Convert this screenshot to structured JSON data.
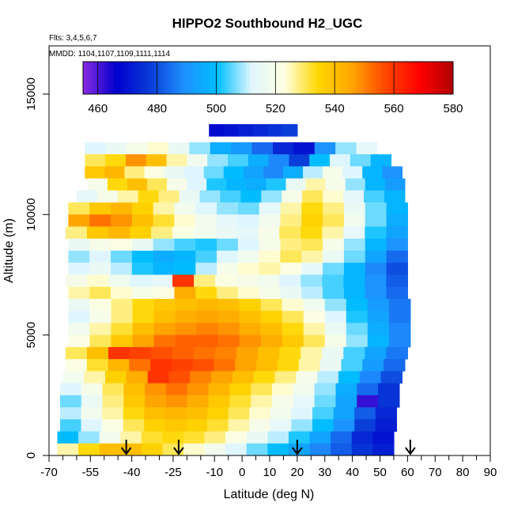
{
  "chart_data": {
    "type": "heatmap",
    "title": "HIPPO2 Southbound H2_UGC",
    "subtitle_flights": "Flts: 3,4,5,6,7",
    "subtitle_dates": "MMDD: 1104,1107,1109,1111,1114",
    "xlabel": "Latitude (deg N)",
    "ylabel": "Altitude (m)",
    "xlim": [
      -70,
      90
    ],
    "ylim": [
      0,
      17000
    ],
    "x_ticks": [
      -70,
      -55,
      -40,
      -25,
      -10,
      0,
      10,
      20,
      30,
      40,
      50,
      60,
      70,
      80,
      90
    ],
    "x_minor_ticks": [
      -65,
      -60,
      -50,
      -45,
      -35,
      -30,
      -20,
      -15,
      -5,
      5,
      15,
      25,
      35,
      45,
      55,
      65,
      75,
      85
    ],
    "y_ticks": [
      0,
      5000,
      10000,
      15000
    ],
    "colorbar": {
      "range": [
        455,
        580
      ],
      "ticks": [
        460,
        480,
        500,
        520,
        540,
        560,
        580
      ],
      "stops": [
        "#8a2be2",
        "#0000cd",
        "#0a3cd8",
        "#1e90ff",
        "#00bfff",
        "#e0f6ff",
        "#ffffe0",
        "#ffd700",
        "#ffa500",
        "#ff4500",
        "#ff0000",
        "#b00000"
      ]
    },
    "profile_markers_lat": [
      -42,
      -23,
      20,
      61
    ],
    "bands": [
      {
        "alt": 13500,
        "lat": [
          -12,
          20
        ],
        "values": [
          468,
          470,
          472,
          474,
          476,
          478
        ]
      },
      {
        "alt": 12750,
        "lat": [
          -57,
          49
        ],
        "values": [
          512,
          516,
          520,
          524,
          516,
          508,
          496,
          492,
          484,
          474,
          470,
          490,
          508,
          514
        ]
      },
      {
        "alt": 12250,
        "lat": [
          -57,
          54
        ],
        "values": [
          530,
          534,
          548,
          540,
          526,
          518,
          508,
          504,
          496,
          488,
          478,
          500,
          512,
          506,
          498
        ]
      },
      {
        "alt": 11750,
        "lat": [
          -57,
          58
        ],
        "values": [
          538,
          542,
          528,
          522,
          516,
          512,
          506,
          500,
          494,
          488,
          496,
          510,
          520,
          512,
          498,
          490
        ]
      },
      {
        "alt": 11250,
        "lat": [
          -56,
          59
        ],
        "values": [
          520,
          534,
          540,
          530,
          520,
          512,
          502,
          498,
          496,
          502,
          516,
          526,
          520,
          508,
          498,
          492
        ]
      },
      {
        "alt": 10750,
        "lat": [
          -60,
          59
        ],
        "values": [
          514,
          520,
          526,
          534,
          528,
          516,
          508,
          504,
          500,
          508,
          520,
          530,
          524,
          514,
          504,
          498
        ]
      },
      {
        "alt": 10250,
        "lat": [
          -63,
          60
        ],
        "values": [
          530,
          538,
          542,
          536,
          526,
          518,
          512,
          508,
          506,
          514,
          526,
          534,
          528,
          516,
          506,
          498
        ]
      },
      {
        "alt": 9750,
        "lat": [
          -63,
          60
        ],
        "values": [
          546,
          552,
          548,
          540,
          532,
          524,
          518,
          514,
          512,
          518,
          528,
          536,
          530,
          518,
          506,
          496
        ]
      },
      {
        "alt": 9250,
        "lat": [
          -64,
          60
        ],
        "values": [
          528,
          538,
          542,
          536,
          528,
          522,
          518,
          516,
          514,
          520,
          530,
          534,
          526,
          514,
          502,
          494
        ]
      },
      {
        "alt": 8750,
        "lat": [
          -63,
          60
        ],
        "values": [
          516,
          520,
          522,
          516,
          508,
          504,
          502,
          506,
          512,
          520,
          528,
          530,
          520,
          508,
          498,
          490
        ]
      },
      {
        "alt": 8250,
        "lat": [
          -63,
          60
        ],
        "values": [
          508,
          512,
          506,
          500,
          496,
          498,
          504,
          512,
          518,
          524,
          530,
          526,
          516,
          506,
          494,
          484
        ]
      },
      {
        "alt": 7750,
        "lat": [
          -63,
          60
        ],
        "values": [
          512,
          516,
          510,
          502,
          498,
          500,
          510,
          520,
          524,
          526,
          522,
          514,
          506,
          498,
          488,
          480
        ]
      },
      {
        "alt": 7250,
        "lat": [
          -64,
          60
        ],
        "values": [
          520,
          524,
          518,
          512,
          514,
          560,
          528,
          522,
          520,
          518,
          512,
          508,
          504,
          498,
          490,
          482
        ]
      },
      {
        "alt": 6750,
        "lat": [
          -63,
          60
        ],
        "values": [
          526,
          530,
          524,
          520,
          522,
          544,
          534,
          528,
          524,
          520,
          516,
          510,
          504,
          498,
          490,
          484
        ]
      },
      {
        "alt": 6250,
        "lat": [
          -63,
          61
        ],
        "values": [
          516,
          522,
          528,
          534,
          538,
          540,
          542,
          540,
          536,
          530,
          524,
          518,
          508,
          500,
          492,
          486
        ]
      },
      {
        "alt": 5750,
        "lat": [
          -63,
          61
        ],
        "values": [
          512,
          520,
          528,
          534,
          540,
          544,
          546,
          544,
          540,
          536,
          530,
          522,
          512,
          502,
          494,
          486
        ]
      },
      {
        "alt": 5250,
        "lat": [
          -63,
          61
        ],
        "values": [
          518,
          526,
          532,
          540,
          546,
          548,
          550,
          548,
          544,
          540,
          534,
          526,
          516,
          506,
          496,
          488
        ]
      },
      {
        "alt": 4750,
        "lat": [
          -63,
          61
        ],
        "values": [
          522,
          530,
          538,
          546,
          552,
          554,
          554,
          552,
          548,
          544,
          538,
          530,
          520,
          508,
          498,
          488
        ]
      },
      {
        "alt": 4250,
        "lat": [
          -64,
          60
        ],
        "values": [
          530,
          540,
          560,
          558,
          556,
          554,
          552,
          550,
          546,
          540,
          534,
          526,
          516,
          504,
          494,
          486
        ]
      },
      {
        "alt": 3750,
        "lat": [
          -64,
          59
        ],
        "values": [
          522,
          532,
          542,
          552,
          560,
          558,
          556,
          552,
          546,
          540,
          534,
          526,
          516,
          504,
          492,
          484
        ]
      },
      {
        "alt": 3250,
        "lat": [
          -65,
          58
        ],
        "values": [
          518,
          526,
          536,
          544,
          560,
          556,
          550,
          546,
          540,
          534,
          528,
          520,
          510,
          500,
          488,
          480
        ]
      },
      {
        "alt": 2750,
        "lat": [
          -66,
          57
        ],
        "values": [
          512,
          520,
          530,
          540,
          548,
          552,
          548,
          542,
          536,
          530,
          524,
          518,
          508,
          496,
          484,
          476
        ]
      },
      {
        "alt": 2250,
        "lat": [
          -66,
          57
        ],
        "values": [
          506,
          516,
          528,
          538,
          546,
          548,
          544,
          538,
          532,
          526,
          520,
          514,
          506,
          494,
          462,
          476
        ]
      },
      {
        "alt": 1750,
        "lat": [
          -66,
          56
        ],
        "values": [
          510,
          518,
          526,
          534,
          540,
          542,
          540,
          536,
          530,
          524,
          518,
          512,
          504,
          494,
          482,
          474
        ]
      },
      {
        "alt": 1250,
        "lat": [
          -66,
          56
        ],
        "values": [
          504,
          512,
          522,
          530,
          536,
          538,
          536,
          532,
          526,
          520,
          514,
          508,
          500,
          490,
          478,
          472
        ]
      },
      {
        "alt": 750,
        "lat": [
          -67,
          55
        ],
        "values": [
          500,
          508,
          518,
          526,
          532,
          534,
          532,
          528,
          522,
          516,
          510,
          502,
          494,
          484,
          474,
          470
        ]
      },
      {
        "alt": 250,
        "lat": [
          -67,
          55
        ],
        "values": [
          526,
          534,
          540,
          540,
          536,
          530,
          524,
          518,
          512,
          506,
          500,
          494,
          488,
          482,
          476,
          472
        ]
      }
    ]
  }
}
